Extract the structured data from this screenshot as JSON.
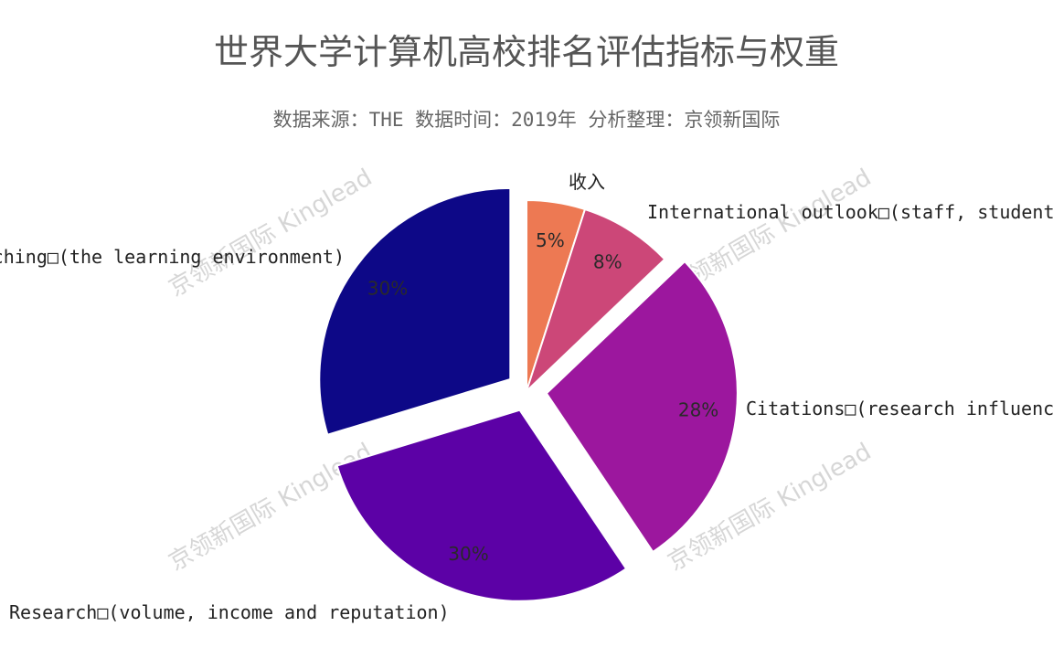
{
  "chart_data": {
    "type": "pie",
    "title": "世界大学计算机高校排名评估指标与权重",
    "subtitle": "数据来源：THE 数据时间：2019年 分析整理：京领新国际",
    "watermark": "京领新国际 Kinglead",
    "slices": [
      {
        "label": "收入",
        "value": 5,
        "percent_label": "5%",
        "color": "#ed7953",
        "pulled": false
      },
      {
        "label": "International outlook□(staff, students, research)",
        "value": 8,
        "percent_label": "8%",
        "color": "#cc4778",
        "pulled": false
      },
      {
        "label": "Citations□(research influence)",
        "value": 28,
        "percent_label": "28%",
        "color": "#9c179e",
        "pulled": true
      },
      {
        "label": "Research□(volume, income and reputation)",
        "value": 30,
        "percent_label": "30%",
        "color": "#5c01a6",
        "pulled": true
      },
      {
        "label": "Teaching□(the learning environment)",
        "value": 30,
        "percent_label": "30%",
        "color": "#0d0887",
        "pulled": true
      }
    ]
  }
}
